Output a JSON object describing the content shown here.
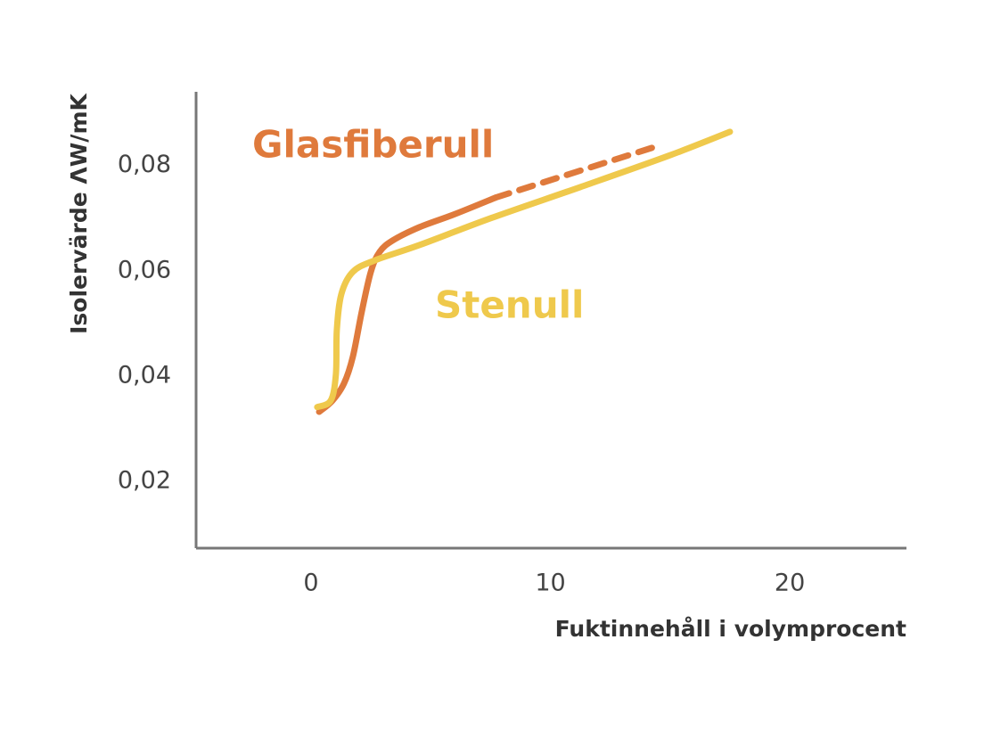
{
  "chart_data": {
    "type": "line",
    "y_label": "Isolervärde ΛW/mK",
    "x_label": "Fuktinnehåll i volymprocent",
    "xlim": [
      -4.8,
      24.8
    ],
    "xticks": [
      0,
      10,
      20
    ],
    "ylim": [
      0.0073,
      0.094
    ],
    "yticks": [
      {
        "value": 0.02,
        "label": "0,02"
      },
      {
        "value": 0.04,
        "label": "0,04"
      },
      {
        "value": 0.06,
        "label": "0,06"
      },
      {
        "value": 0.08,
        "label": "0,08"
      }
    ],
    "series": [
      {
        "name": "Glasfiberull",
        "color": "#df7a3c",
        "dashed_from_index": 10,
        "x": [
          0.34,
          0.89,
          1.38,
          1.75,
          2.12,
          2.5,
          2.87,
          3.43,
          4.54,
          6.03,
          7.71,
          14.41
        ],
        "values": [
          0.0332,
          0.0353,
          0.0386,
          0.0437,
          0.0522,
          0.0598,
          0.0636,
          0.0658,
          0.0683,
          0.0708,
          0.0739,
          0.0836
        ]
      },
      {
        "name": "Stenull",
        "color": "#efc94c",
        "x": [
          0.26,
          0.82,
          1.04,
          1.08,
          1.27,
          1.75,
          2.68,
          4.54,
          7.52,
          11.25,
          14.97,
          17.5
        ],
        "values": [
          0.0341,
          0.0353,
          0.0403,
          0.0488,
          0.0556,
          0.0598,
          0.062,
          0.0649,
          0.07,
          0.0759,
          0.0819,
          0.0864
        ]
      }
    ]
  }
}
